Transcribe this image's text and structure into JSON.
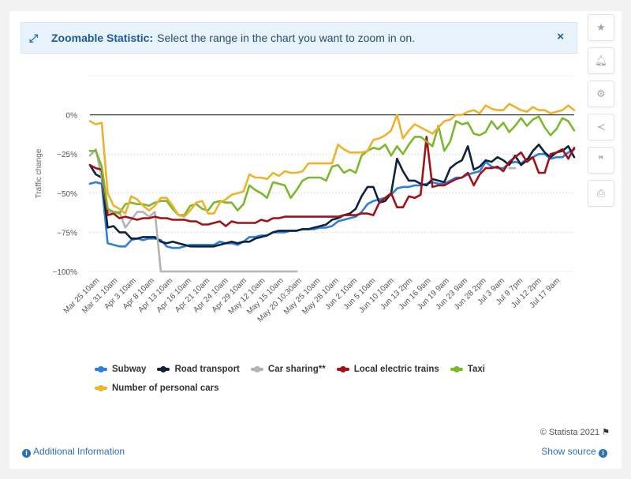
{
  "banner": {
    "title": "Zoomable Statistic:",
    "text": "Select the range in the chart you want to zoom in on.",
    "close": "×"
  },
  "tools": [
    "star-icon",
    "bell-icon",
    "gear-icon",
    "share-icon",
    "quote-icon",
    "print-icon"
  ],
  "footer": {
    "copyright": "© Statista 2021",
    "additional_info": "Additional Information",
    "show_source": "Show source"
  },
  "colors": {
    "subway": "#2f7ed8",
    "road": "#0d233a",
    "car_sharing": "#b3b3b3",
    "electric_trains": "#a01217",
    "taxi": "#7cb82f",
    "personal_cars": "#efb22b"
  },
  "chart_data": {
    "type": "line",
    "ylabel": "Traffic change",
    "ylim": [
      -100,
      25
    ],
    "yticks": [
      -100,
      -75,
      -50,
      -25,
      0
    ],
    "ytick_labels": [
      "−100%",
      "−75%",
      "−50%",
      "−25%",
      "0%"
    ],
    "x_tick_labels": [
      "Mar 25 10am",
      "Mar 31 10am",
      "Apr 3 10am",
      "Apr 8 10am",
      "Apr 13 10am",
      "Apr 16 10am",
      "Apr 21 10am",
      "Apr 24 10am",
      "Apr 29 10am",
      "May 12 10am",
      "May 15 10am",
      "May 20 10:30am",
      "May 25 10am",
      "May 28 10am",
      "Jun 2 10am",
      "Jun 5 10am",
      "Jun 10 10am",
      "Jun 13 2pm",
      "Jun 16 9am",
      "Jun 19 9am",
      "Jun 23 9am",
      "Jun 28 2pm",
      "Jul 3 9am",
      "Jul 9 7pm",
      "Jul 12 2pm",
      "Jul 17 9am"
    ],
    "legend": [
      {
        "key": "subway",
        "label": "Subway"
      },
      {
        "key": "road",
        "label": "Road transport"
      },
      {
        "key": "car_sharing",
        "label": "Car sharing**"
      },
      {
        "key": "electric_trains",
        "label": "Local electric trains"
      },
      {
        "key": "taxi",
        "label": "Taxi"
      },
      {
        "key": "personal_cars",
        "label": "Number of personal cars"
      }
    ],
    "series": [
      {
        "name": "Subway",
        "key": "subway",
        "values": [
          -44,
          -43,
          -44,
          -82,
          -83,
          -84,
          -84,
          -80,
          -79,
          -80,
          -79,
          -79,
          -80,
          -84,
          -85,
          -85,
          -84,
          -83,
          -83,
          -83,
          -83,
          -83,
          -81,
          -82,
          -82,
          -83,
          -81,
          -78,
          -78,
          -77,
          -77,
          -75,
          -75,
          -75,
          -74,
          -74,
          -73,
          -73,
          -73,
          -72,
          -72,
          -71,
          -68,
          -67,
          -66,
          -65,
          -62,
          -57,
          -55,
          -54,
          -53,
          -51,
          -47,
          -46,
          -46,
          -45,
          -45,
          -44,
          -43,
          -44,
          -44,
          -42,
          -40,
          -40,
          -38,
          -37,
          -36,
          -30,
          -33,
          -34,
          -34,
          -31,
          -30,
          -31,
          -28,
          -27,
          -25,
          -25,
          -28,
          -27,
          -27,
          -24,
          -22
        ]
      },
      {
        "name": "Road transport",
        "key": "road",
        "values": [
          -32,
          -38,
          -40,
          -72,
          -71,
          -75,
          -75,
          -79,
          -79,
          -78,
          -78,
          -78,
          -81,
          -82,
          -81,
          -82,
          -83,
          -84,
          -84,
          -84,
          -84,
          -84,
          -83,
          -82,
          -81,
          -82,
          -81,
          -81,
          -79,
          -78,
          -77,
          -75,
          -74,
          -74,
          -74,
          -74,
          -73,
          -73,
          -72,
          -71,
          -70,
          -67,
          -66,
          -64,
          -63,
          -60,
          -52,
          -46,
          -46,
          -56,
          -55,
          -50,
          -28,
          -36,
          -42,
          -42,
          -44,
          -45,
          -41,
          -42,
          -43,
          -34,
          -31,
          -29,
          -20,
          -35,
          -33,
          -29,
          -30,
          -27,
          -29,
          -32,
          -26,
          -32,
          -29,
          -23,
          -19,
          -24,
          -27,
          -24,
          -23,
          -20,
          -27
        ]
      },
      {
        "name": "Car sharing**",
        "key": "car_sharing",
        "values": [
          -26,
          -22,
          -40,
          -62,
          -62,
          -62,
          -72,
          -67,
          -62,
          -62,
          -65,
          -62,
          -100,
          -100,
          -100,
          -100,
          -100,
          -100,
          -100,
          -100,
          -100,
          -100,
          -100,
          -100,
          -100,
          -100,
          -100,
          -100,
          -100,
          -100,
          -100,
          -100,
          -100,
          -100,
          -100,
          -100,
          null,
          null,
          null,
          null,
          null,
          null,
          null,
          null,
          null,
          null,
          null,
          null,
          null,
          null,
          null,
          null,
          null,
          null,
          null,
          null,
          null,
          null,
          null,
          null,
          null,
          null,
          null,
          null,
          null,
          null,
          null,
          null,
          null,
          null,
          null,
          -34,
          -34,
          null,
          null,
          null,
          null,
          null,
          null,
          null,
          null,
          null,
          null
        ]
      },
      {
        "name": "Local electric trains",
        "key": "electric_trains",
        "values": [
          -32,
          -34,
          -35,
          -64,
          -63,
          -66,
          -65,
          -66,
          -67,
          -66,
          -66,
          -65,
          -66,
          -66,
          -67,
          -67,
          -67,
          -68,
          -68,
          -70,
          -70,
          -69,
          -68,
          -71,
          -68,
          -69,
          -69,
          -69,
          -69,
          -67,
          -68,
          -66,
          -66,
          -65,
          -65,
          -65,
          -65,
          -65,
          -65,
          -65,
          -65,
          -65,
          -65,
          -64,
          -64,
          -64,
          -63,
          -63,
          -64,
          -56,
          -53,
          -50,
          -59,
          -59,
          -52,
          -53,
          -51,
          -14,
          -46,
          -45,
          -45,
          -43,
          -41,
          -40,
          -37,
          -45,
          -38,
          -34,
          -34,
          -33,
          -36,
          -30,
          -27,
          -24,
          -30,
          -27,
          -37,
          -37,
          -25,
          -24,
          -22,
          -28,
          -21
        ]
      },
      {
        "name": "Taxi",
        "key": "taxi",
        "values": [
          -23,
          -23,
          -33,
          -60,
          -62,
          -63,
          -57,
          -56,
          -57,
          -57,
          -58,
          -56,
          -55,
          -55,
          -60,
          -64,
          -64,
          -58,
          -57,
          -60,
          -61,
          -56,
          -55,
          -56,
          -56,
          -61,
          -57,
          -45,
          -48,
          -50,
          -53,
          -43,
          -44,
          -45,
          -53,
          -48,
          -42,
          -40,
          -40,
          -40,
          -42,
          -33,
          -32,
          -37,
          -35,
          -37,
          -26,
          -23,
          -21,
          -22,
          -19,
          -26,
          -20,
          -25,
          -19,
          -14,
          -14,
          -17,
          -20,
          -7,
          -23,
          -17,
          -4,
          -6,
          -5,
          -12,
          -13,
          -11,
          -4,
          -9,
          -5,
          -11,
          -7,
          -2,
          -7,
          -3,
          -1,
          -8,
          -13,
          -9,
          -2,
          -4,
          -10
        ]
      },
      {
        "name": "Number of personal cars",
        "key": "personal_cars",
        "values": [
          -4,
          -6,
          -5,
          -50,
          -58,
          -60,
          -63,
          -52,
          -54,
          -58,
          -61,
          -58,
          -53,
          -53,
          -58,
          -64,
          -65,
          -61,
          -56,
          -55,
          -63,
          -63,
          -56,
          -54,
          -51,
          -50,
          -49,
          -38,
          -40,
          -40,
          -41,
          -37,
          -39,
          -36,
          -37,
          -37,
          -36,
          -31,
          -31,
          -31,
          -31,
          -31,
          -19,
          -22,
          -24,
          -24,
          -24,
          -23,
          -16,
          -15,
          -13,
          -10,
          0,
          -15,
          -10,
          -6,
          -8,
          -10,
          -12,
          -8,
          -4,
          -3,
          0,
          0,
          2,
          3,
          1,
          6,
          4,
          3,
          3,
          7,
          5,
          3,
          2,
          5,
          3,
          3,
          1,
          2,
          3,
          6,
          3
        ]
      }
    ]
  }
}
